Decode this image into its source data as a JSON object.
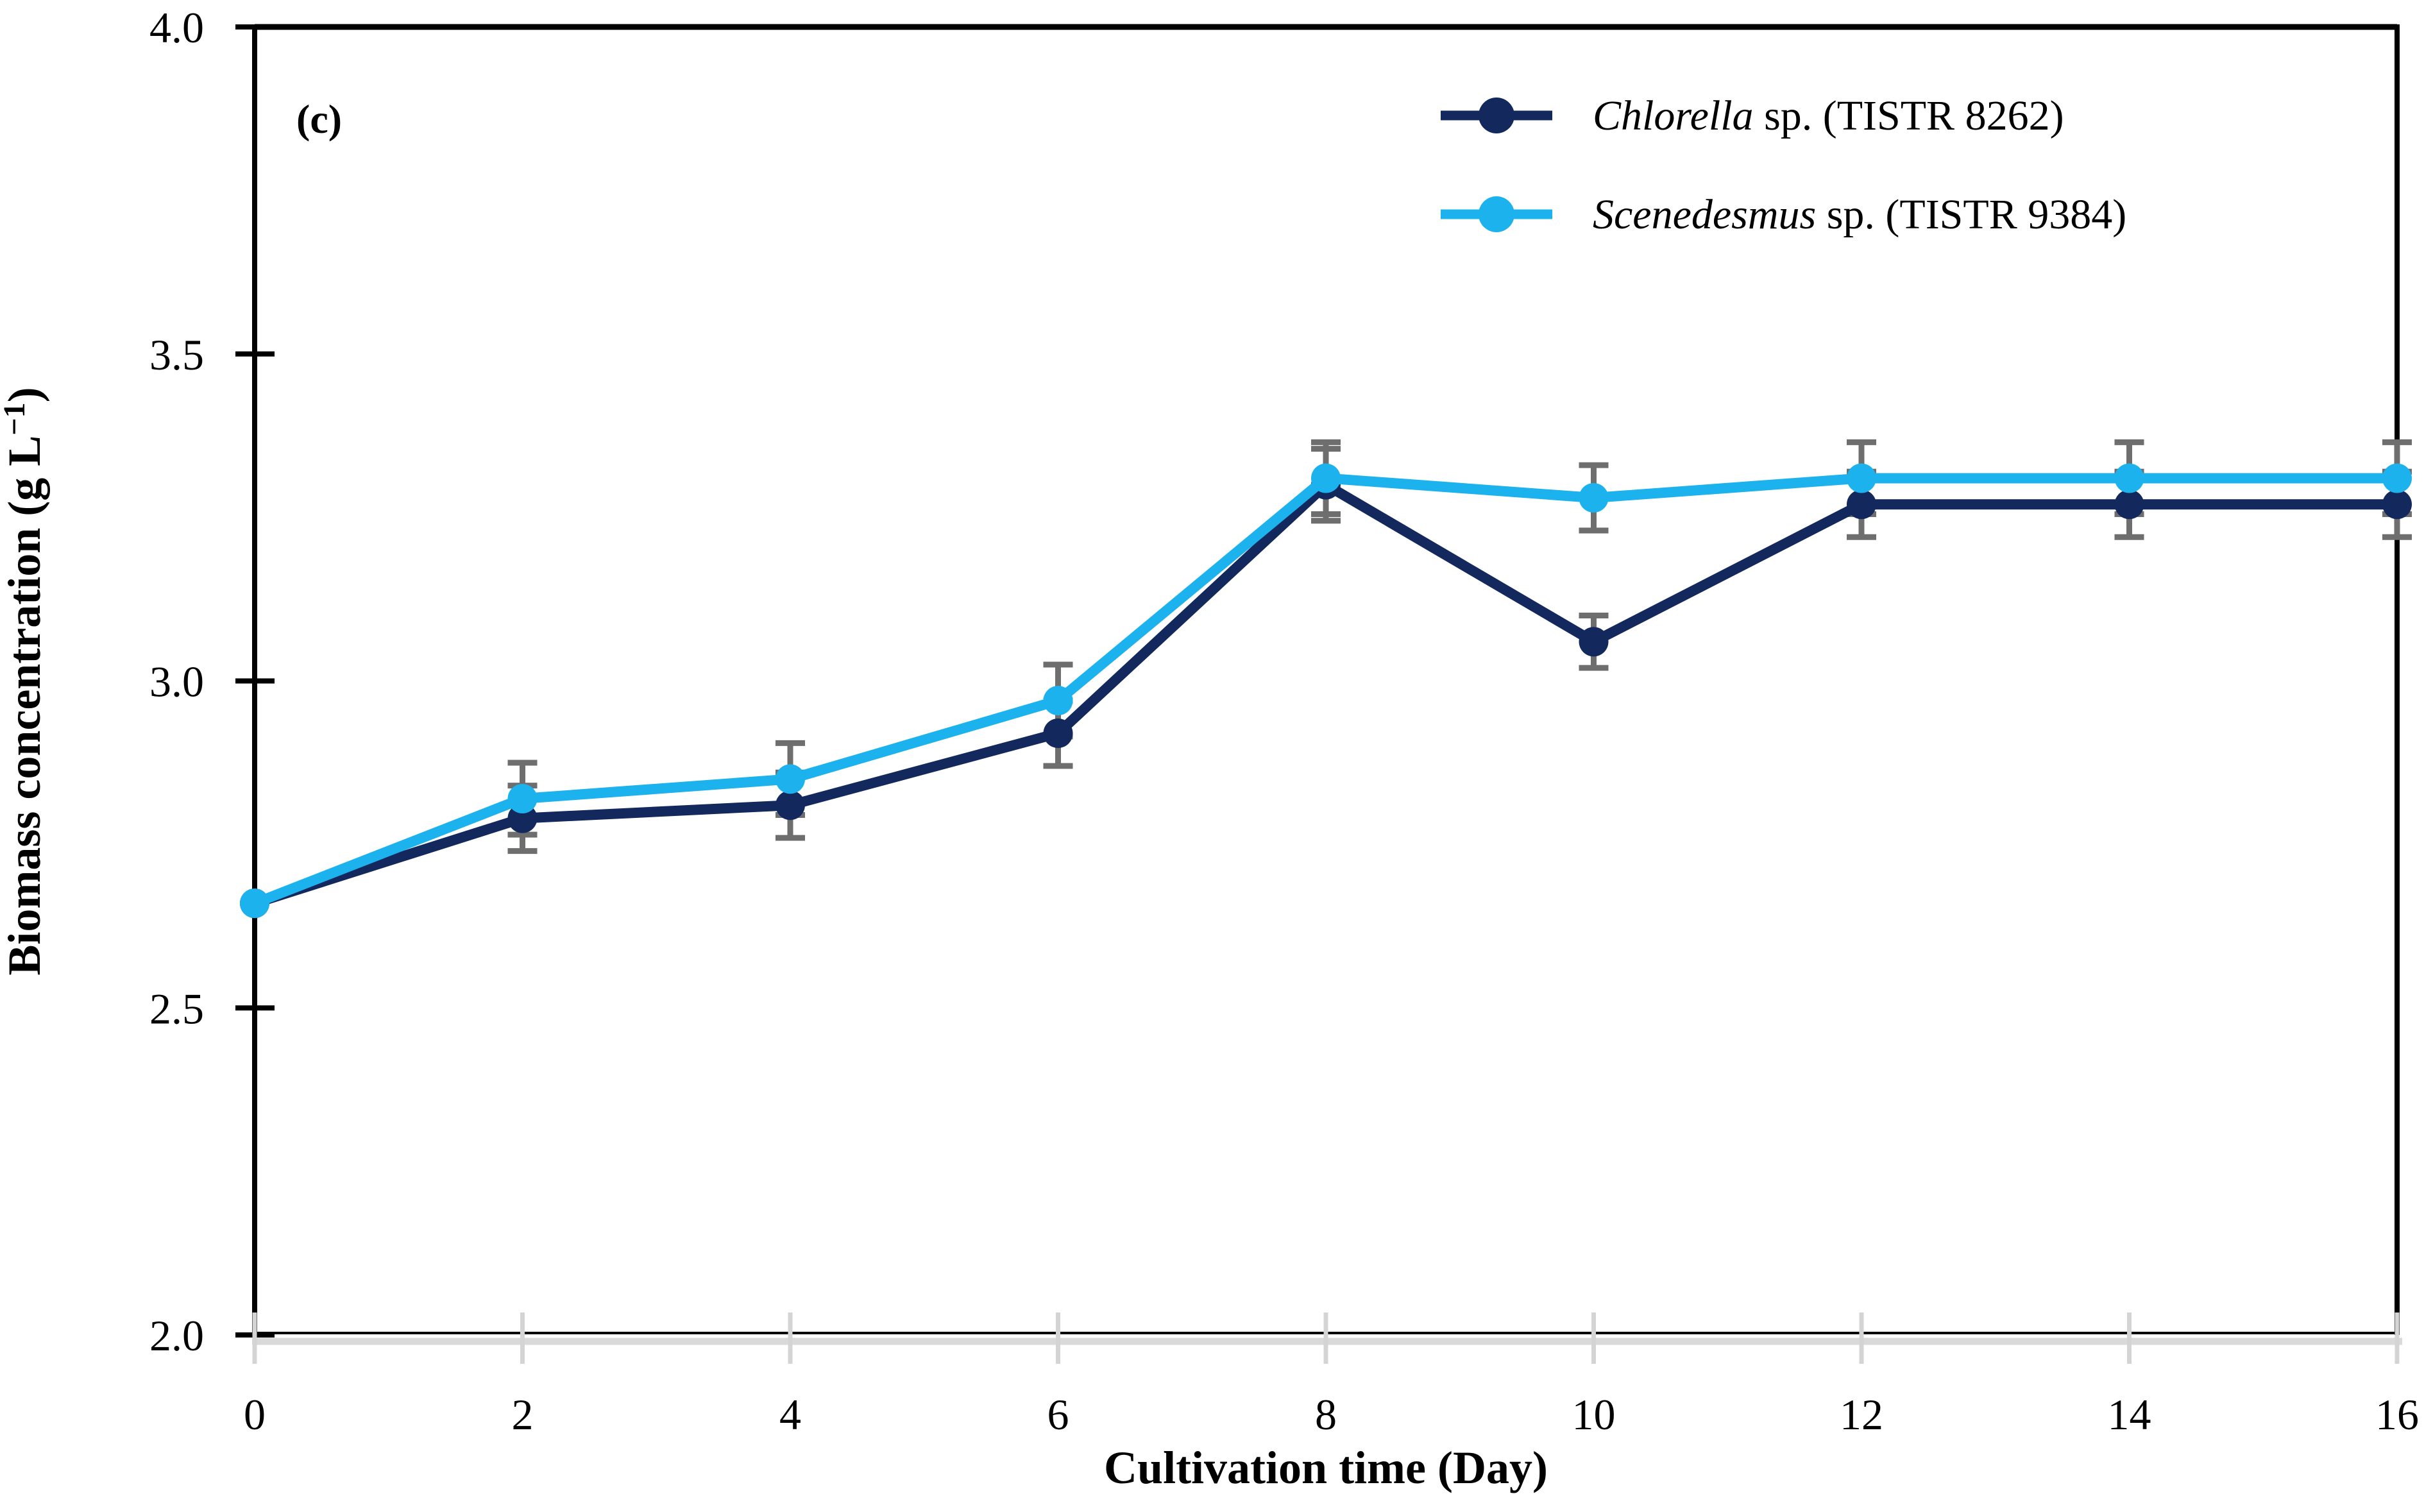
{
  "panel_label": "(c)",
  "axes": {
    "x_title": "Cultivation time (Day)",
    "y_title": "Biomass concentration (g L⁻¹)",
    "y_title_pre": "Biomass concentration (g L",
    "y_title_sup": "−1",
    "y_title_post": ")"
  },
  "legend": {
    "items": [
      {
        "italic": "Chlorella",
        "rest": " sp. (TISTR 8262)",
        "color": "#13295E"
      },
      {
        "italic": "Scenedesmus",
        "rest": " sp. (TISTR 9384)",
        "color": "#1CB2EE"
      }
    ]
  },
  "chart_data": {
    "type": "line",
    "title": "",
    "xlabel": "Cultivation time (Day)",
    "ylabel": "Biomass concentration (g L-1)",
    "x": [
      0,
      2,
      4,
      6,
      8,
      10,
      12,
      14,
      16
    ],
    "x_tick_labels": [
      "0",
      "2",
      "4",
      "6",
      "8",
      "10",
      "12",
      "14",
      "16"
    ],
    "y_tick_labels": [
      "2.0",
      "2.5",
      "3.0",
      "3.5",
      "4.0"
    ],
    "xlim": [
      0,
      16
    ],
    "ylim": [
      2.0,
      4.0
    ],
    "grid": false,
    "legend_position": "top-right",
    "marker": "circle",
    "error_bar_color": "#6E6E6E",
    "series": [
      {
        "name": "Chlorella sp. (TISTR 8262)",
        "color": "#13295E",
        "values": [
          2.66,
          2.79,
          2.81,
          2.92,
          3.3,
          3.06,
          3.27,
          3.27,
          3.27
        ],
        "errors": [
          0,
          0.05,
          0.05,
          0.05,
          0.055,
          0.04,
          0.05,
          0.05,
          0.05
        ]
      },
      {
        "name": "Scenedesmus sp. (TISTR 9384)",
        "color": "#1CB2EE",
        "values": [
          2.66,
          2.82,
          2.85,
          2.97,
          3.31,
          3.28,
          3.31,
          3.31,
          3.31
        ],
        "errors": [
          0,
          0.055,
          0.055,
          0.055,
          0.055,
          0.05,
          0.055,
          0.055,
          0.055
        ]
      }
    ]
  },
  "style": {
    "axis_black": "#000000",
    "x_axis_gray_line": "#D9D9D9",
    "x_tick_gray": "#D4D4D4"
  }
}
